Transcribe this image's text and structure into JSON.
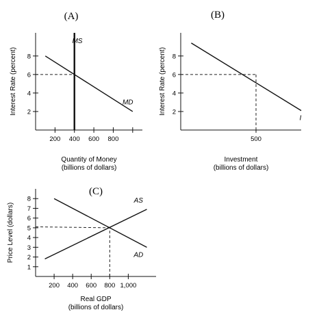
{
  "chart_data": [
    {
      "id": "A",
      "type": "line",
      "title": "(A)",
      "xlabel": "Quantity of Money",
      "xlabel2": "(billions of dollars)",
      "ylabel": "Interest Rate (percent)",
      "xlim": [
        0,
        1100
      ],
      "ylim": [
        0,
        10.5
      ],
      "xticks": [
        200,
        400,
        600,
        800,
        1000
      ],
      "xtick_labels": [
        "200",
        "400",
        "600",
        "800",
        ""
      ],
      "yticks": [
        2,
        4,
        6,
        8
      ],
      "ytick_labels": [
        "2",
        "4",
        "6",
        "8"
      ],
      "series": [
        {
          "name": "MS",
          "x": [
            400,
            400
          ],
          "y": [
            0,
            10.5
          ],
          "label_at": [
            430,
            9.6
          ],
          "bold": true
        },
        {
          "name": "MD",
          "x": [
            100,
            1000
          ],
          "y": [
            8,
            2
          ],
          "label_at": [
            950,
            3
          ]
        }
      ],
      "guides": [
        {
          "x": [
            0,
            400
          ],
          "y": [
            6,
            6
          ]
        },
        {
          "x": [
            400,
            400
          ],
          "y": [
            0,
            6
          ]
        }
      ]
    },
    {
      "id": "B",
      "type": "line",
      "title": "(B)",
      "xlabel": "Investment",
      "xlabel2": "(billions of dollars)",
      "ylabel": "Interest Rate (percent)",
      "xlim": [
        0,
        800
      ],
      "ylim": [
        0,
        10.5
      ],
      "xticks": [
        500
      ],
      "xtick_labels": [
        "500"
      ],
      "yticks": [
        2,
        4,
        6,
        8
      ],
      "ytick_labels": [
        "2",
        "4",
        "6",
        "8"
      ],
      "series": [
        {
          "name": "I",
          "x": [
            70,
            800
          ],
          "y": [
            9.4,
            2.1
          ],
          "label_at": [
            795,
            1.3
          ]
        }
      ],
      "guides": [
        {
          "x": [
            0,
            500
          ],
          "y": [
            6,
            6
          ]
        },
        {
          "x": [
            500,
            500
          ],
          "y": [
            0,
            6
          ]
        }
      ]
    },
    {
      "id": "C",
      "type": "line",
      "title": "(C)",
      "xlabel": "Real GDP",
      "xlabel2": "(billions of dollars)",
      "ylabel": "Price Level (dollars)",
      "xlim": [
        0,
        1300
      ],
      "ylim": [
        0,
        9
      ],
      "xticks": [
        200,
        400,
        600,
        800,
        1000
      ],
      "xtick_labels": [
        "200",
        "400",
        "600",
        "800",
        "1,000"
      ],
      "yticks": [
        1,
        2,
        3,
        4,
        5,
        6,
        7,
        8
      ],
      "ytick_labels": [
        "1",
        "2",
        "3",
        "4",
        "5",
        "6",
        "7",
        "8"
      ],
      "series": [
        {
          "name": "AS",
          "x": [
            100,
            1200
          ],
          "y": [
            1.8,
            6.9
          ],
          "label_at": [
            1110,
            7.8
          ]
        },
        {
          "name": "AD",
          "x": [
            200,
            1200
          ],
          "y": [
            8,
            3
          ],
          "label_at": [
            1110,
            2.2
          ]
        }
      ],
      "guides": [
        {
          "x": [
            0,
            800
          ],
          "y": [
            5.1,
            5
          ]
        },
        {
          "x": [
            800,
            800
          ],
          "y": [
            0,
            5
          ]
        }
      ]
    }
  ]
}
